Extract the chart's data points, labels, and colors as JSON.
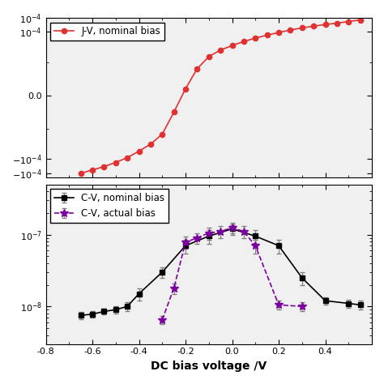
{
  "jv_x": [
    -0.65,
    -0.6,
    -0.55,
    -0.5,
    -0.45,
    -0.4,
    -0.35,
    -0.3,
    -0.25,
    -0.2,
    -0.15,
    -0.1,
    -0.05,
    0.0,
    0.05,
    0.1,
    0.15,
    0.2,
    0.25,
    0.3,
    0.35,
    0.4,
    0.45,
    0.5,
    0.55
  ],
  "jv_y": [
    -0.0003,
    -0.00023,
    -0.00018,
    -0.00013,
    -9e-05,
    -5.5e-05,
    -3.2e-05,
    -1.5e-05,
    -5e-06,
    2e-06,
    8e-06,
    1.5e-05,
    2.5e-05,
    3.5e-05,
    4.8e-05,
    6.2e-05,
    7.8e-05,
    9.5e-05,
    0.000115,
    0.000135,
    0.000155,
    0.000175,
    0.000195,
    0.00022,
    0.00025
  ],
  "jv_color": "#e03030",
  "jv_label": "J-V, nominal bias",
  "cv_nom_x": [
    -0.65,
    -0.6,
    -0.55,
    -0.5,
    -0.45,
    -0.4,
    -0.3,
    -0.2,
    -0.1,
    0.0,
    0.1,
    0.2,
    0.3,
    0.4,
    0.5,
    0.55
  ],
  "cv_nom_y": [
    7.5e-09,
    7.8e-09,
    8.5e-09,
    9e-09,
    1e-08,
    1.5e-08,
    3e-08,
    7e-08,
    9.5e-08,
    1.2e-07,
    9.5e-08,
    7e-08,
    2.5e-08,
    1.2e-08,
    1.1e-08,
    1.05e-08
  ],
  "cv_nom_yerr": [
    8e-10,
    8e-10,
    8e-10,
    1e-09,
    1.5e-09,
    3e-09,
    5e-09,
    1.5e-08,
    2e-08,
    2e-08,
    2e-08,
    1.5e-08,
    5e-09,
    1.5e-09,
    1.5e-09,
    1.5e-09
  ],
  "cv_nom_color": "#000000",
  "cv_nom_label": "C-V, nominal bias",
  "cv_act_x": [
    -0.3,
    -0.25,
    -0.2,
    -0.15,
    -0.1,
    -0.05,
    0.0,
    0.05,
    0.1,
    0.2,
    0.3
  ],
  "cv_act_y": [
    6.5e-09,
    1.8e-08,
    7.8e-08,
    9e-08,
    1.05e-07,
    1.1e-07,
    1.25e-07,
    1.1e-07,
    7e-08,
    1.05e-08,
    1e-08
  ],
  "cv_act_yerr": [
    8e-10,
    3e-09,
    1.5e-08,
    1.5e-08,
    2e-08,
    2e-08,
    2e-08,
    2e-08,
    1.5e-08,
    1.5e-09,
    1.5e-09
  ],
  "cv_act_color": "#7B00A0",
  "cv_act_label": "C-V, actual bias",
  "xlim": [
    -0.8,
    0.6
  ],
  "xticks": [
    -0.8,
    -0.6,
    -0.4,
    -0.2,
    0.0,
    0.2,
    0.4
  ],
  "xticklabels": [
    "-0.8",
    "-0.6",
    "-0.4",
    "-0.2",
    "0.0",
    "0.2",
    "0.4"
  ],
  "xlabel": "DC bias voltage /V",
  "jv_ylim": [
    -0.0004,
    0.0003
  ],
  "jv_linthresh": 1e-05,
  "cv_ylim": [
    3e-09,
    5e-07
  ],
  "background_color": "#ffffff",
  "fig_width": 4.74,
  "fig_height": 4.74,
  "panel_bg": "#f0f0f0"
}
